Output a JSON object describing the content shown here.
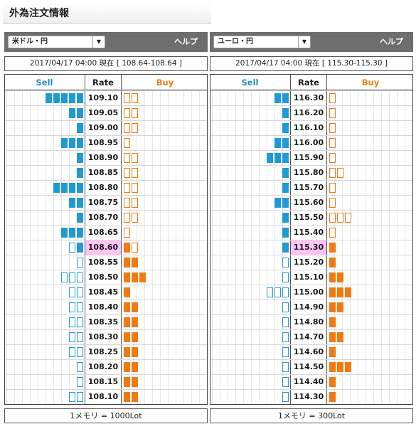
{
  "page": {
    "title": "外為注文情報"
  },
  "colors": {
    "sell": "#1f9ad4",
    "buy": "#f07a10",
    "current_rate_bg": "#ffc2f5",
    "header_bg": "#6e6e6e"
  },
  "panels": [
    {
      "pair": "米ドル・円",
      "help": "ヘルプ",
      "quote": "2017/04/17  04:00 現在 [ 108.64-108.64 ]",
      "columns": {
        "sell": "Sell",
        "rate": "Rate",
        "buy": "Buy"
      },
      "current_rate": "108.60",
      "lot_note": "1メモリ = 1000Lot",
      "rows": [
        {
          "rate": "109.10",
          "sell": [
            0,
            0,
            0,
            0,
            0
          ],
          "buy": [
            1,
            1
          ]
        },
        {
          "rate": "109.05",
          "sell": [
            0,
            0
          ],
          "buy": [
            1,
            1
          ]
        },
        {
          "rate": "109.00",
          "sell": [
            0
          ],
          "buy": [
            1,
            1
          ]
        },
        {
          "rate": "108.95",
          "sell": [
            0,
            0,
            0
          ],
          "buy": [
            1
          ]
        },
        {
          "rate": "108.90",
          "sell": [
            0
          ],
          "buy": [
            1,
            1
          ]
        },
        {
          "rate": "108.85",
          "sell": [
            0
          ],
          "buy": [
            1,
            1
          ]
        },
        {
          "rate": "108.80",
          "sell": [
            0,
            0,
            0,
            0
          ],
          "buy": [
            1,
            1
          ]
        },
        {
          "rate": "108.75",
          "sell": [
            0,
            0
          ],
          "buy": [
            1,
            1
          ]
        },
        {
          "rate": "108.70",
          "sell": [
            0
          ],
          "buy": [
            1,
            1
          ]
        },
        {
          "rate": "108.65",
          "sell": [
            0,
            0,
            0
          ],
          "buy": [
            1
          ]
        },
        {
          "rate": "108.60",
          "sell": [
            1,
            0
          ],
          "buy": [
            0,
            1
          ]
        },
        {
          "rate": "108.55",
          "sell": [
            1
          ],
          "buy": [
            0,
            0
          ]
        },
        {
          "rate": "108.50",
          "sell": [
            1,
            1,
            1
          ],
          "buy": [
            0,
            0,
            0
          ]
        },
        {
          "rate": "108.45",
          "sell": [
            1,
            1
          ],
          "buy": [
            0
          ]
        },
        {
          "rate": "108.40",
          "sell": [
            1,
            1
          ],
          "buy": [
            0,
            0
          ]
        },
        {
          "rate": "108.35",
          "sell": [
            1,
            1
          ],
          "buy": [
            0,
            0
          ]
        },
        {
          "rate": "108.30",
          "sell": [
            1,
            1
          ],
          "buy": [
            0,
            0
          ]
        },
        {
          "rate": "108.25",
          "sell": [
            1,
            1
          ],
          "buy": [
            0,
            0
          ]
        },
        {
          "rate": "108.20",
          "sell": [
            1
          ],
          "buy": [
            0,
            0
          ]
        },
        {
          "rate": "108.15",
          "sell": [
            1
          ],
          "buy": [
            0,
            0
          ]
        },
        {
          "rate": "108.10",
          "sell": [
            1,
            1
          ],
          "buy": [
            0,
            0
          ]
        }
      ]
    },
    {
      "pair": "ユーロ・円",
      "help": "ヘルプ",
      "quote": "2017/04/17  04:00 現在 [ 115.30-115.30 ]",
      "columns": {
        "sell": "Sell",
        "rate": "Rate",
        "buy": "Buy"
      },
      "current_rate": "115.30",
      "lot_note": "1メモリ = 300Lot",
      "rows": [
        {
          "rate": "116.30",
          "sell": [
            0,
            0
          ],
          "buy": [
            1
          ]
        },
        {
          "rate": "116.20",
          "sell": [
            0
          ],
          "buy": [
            1
          ]
        },
        {
          "rate": "116.10",
          "sell": [
            0
          ],
          "buy": [
            1
          ]
        },
        {
          "rate": "116.00",
          "sell": [
            0,
            0
          ],
          "buy": [
            1
          ]
        },
        {
          "rate": "115.90",
          "sell": [
            0,
            0,
            0
          ],
          "buy": [
            1
          ]
        },
        {
          "rate": "115.80",
          "sell": [
            0
          ],
          "buy": [
            1,
            1
          ]
        },
        {
          "rate": "115.70",
          "sell": [
            0
          ],
          "buy": [
            1
          ]
        },
        {
          "rate": "115.60",
          "sell": [
            0,
            0
          ],
          "buy": [
            1
          ]
        },
        {
          "rate": "115.50",
          "sell": [
            0
          ],
          "buy": [
            1,
            1,
            1
          ]
        },
        {
          "rate": "115.40",
          "sell": [
            0
          ],
          "buy": [
            1
          ]
        },
        {
          "rate": "115.30",
          "sell": [
            0
          ],
          "buy": [
            0
          ]
        },
        {
          "rate": "115.20",
          "sell": [
            1
          ],
          "buy": [
            0
          ]
        },
        {
          "rate": "115.10",
          "sell": [
            1
          ],
          "buy": [
            0,
            0
          ]
        },
        {
          "rate": "115.00",
          "sell": [
            1,
            1,
            1
          ],
          "buy": [
            0,
            0,
            0
          ]
        },
        {
          "rate": "114.90",
          "sell": [
            1
          ],
          "buy": [
            0,
            0
          ]
        },
        {
          "rate": "114.80",
          "sell": [
            1
          ],
          "buy": [
            0
          ]
        },
        {
          "rate": "114.70",
          "sell": [
            1
          ],
          "buy": [
            0,
            0
          ]
        },
        {
          "rate": "114.60",
          "sell": [
            1
          ],
          "buy": [
            0
          ]
        },
        {
          "rate": "114.50",
          "sell": [
            1
          ],
          "buy": [
            0,
            0,
            0
          ]
        },
        {
          "rate": "114.40",
          "sell": [
            1
          ],
          "buy": [
            0
          ]
        },
        {
          "rate": "114.30",
          "sell": [
            1
          ],
          "buy": [
            0
          ]
        }
      ]
    }
  ]
}
